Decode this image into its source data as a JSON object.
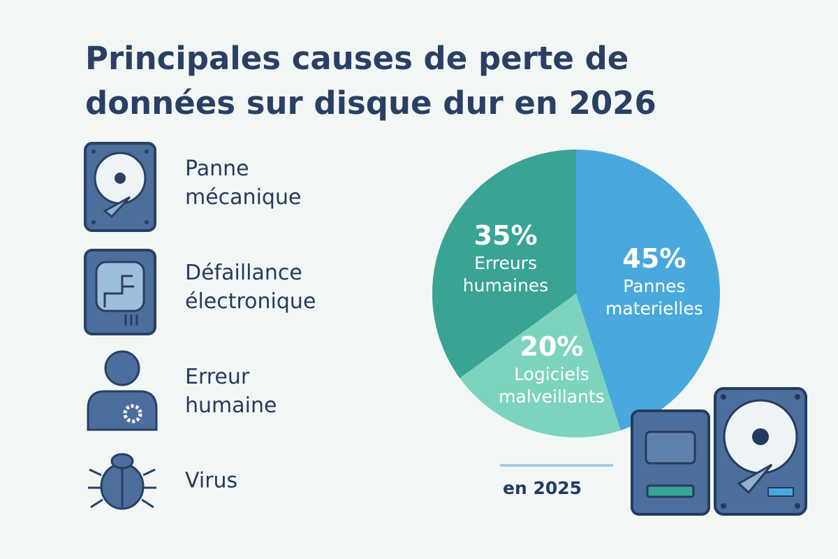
{
  "title": "Principales causes de perte de données sur disque dur en 2026",
  "causes": [
    "Panne mécanique",
    "Défaillance électronique",
    "Erreur humaine",
    "Virus"
  ],
  "chart_data": {
    "type": "pie",
    "categories": [
      "Pannes materielles",
      "Logiciels malveillants",
      "Erreurs humaines"
    ],
    "values": [
      45,
      20,
      35
    ],
    "value_labels": [
      "45%",
      "20%",
      "35%"
    ],
    "colors": [
      "#4aa9dc",
      "#7dd4be",
      "#39a394"
    ],
    "caption": "en 2025"
  }
}
